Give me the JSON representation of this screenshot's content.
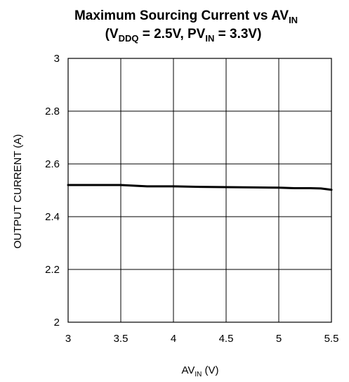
{
  "chart_data": {
    "type": "line",
    "title": {
      "line1": {
        "main": "Maximum Sourcing Current vs AV",
        "sub": "IN"
      },
      "line2": {
        "open": "(V",
        "sub1": "DDQ",
        "mid": " = 2.5V, PV",
        "sub2": "IN",
        "close": " = 3.3V)"
      }
    },
    "xlabel": {
      "main": "AV",
      "sub": "IN",
      "unit": " (V)"
    },
    "ylabel": "OUTPUT CURRENT (A)",
    "xlim": [
      3,
      5.5
    ],
    "ylim": [
      2,
      3
    ],
    "xticks": [
      "3",
      "3.5",
      "4",
      "4.5",
      "5",
      "5.5"
    ],
    "xtick_values": [
      3,
      3.5,
      4,
      4.5,
      5,
      5.5
    ],
    "yticks": [
      "2",
      "2.2",
      "2.4",
      "2.6",
      "2.8",
      "3"
    ],
    "ytick_values": [
      2,
      2.2,
      2.4,
      2.6,
      2.8,
      3
    ],
    "grid": true,
    "series": [
      {
        "color": "#000000",
        "x": [
          3.0,
          3.25,
          3.5,
          3.75,
          4.0,
          4.25,
          4.5,
          4.75,
          5.0,
          5.15,
          5.3,
          5.4,
          5.5
        ],
        "y": [
          2.52,
          2.52,
          2.52,
          2.515,
          2.515,
          2.513,
          2.512,
          2.511,
          2.51,
          2.508,
          2.508,
          2.507,
          2.502
        ]
      }
    ]
  }
}
